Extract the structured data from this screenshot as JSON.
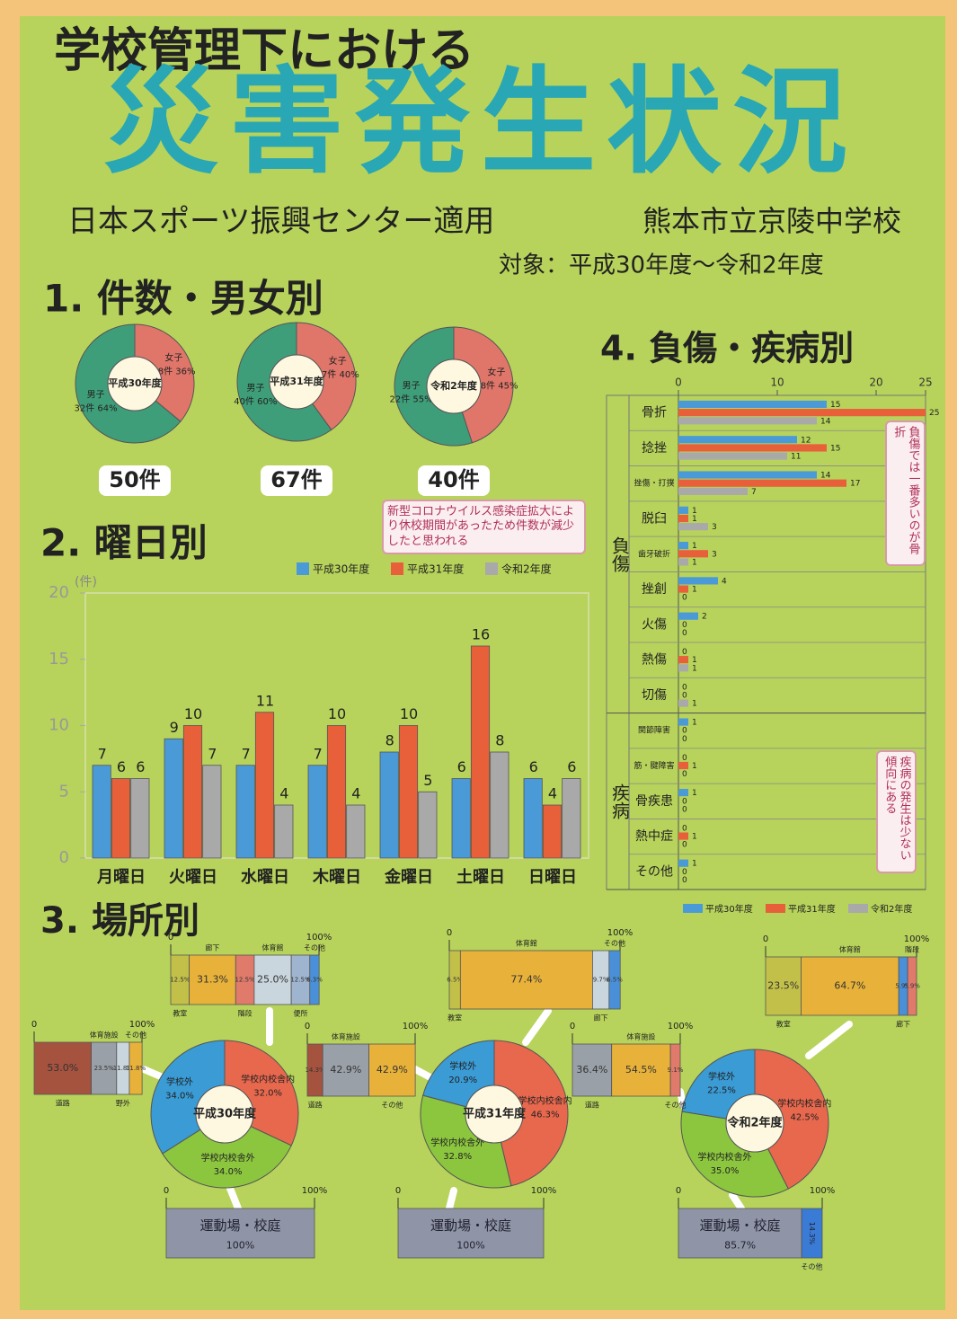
{
  "title_line1": "学校管理下における",
  "title_line2": "災害発生状況",
  "source": "日本スポーツ振興センター適用",
  "school": "熊本市立京陵中学校",
  "period": "対象：平成30年度～令和2年度",
  "sections": [
    "1. 件数・男女別",
    "2. 曜日別",
    "3. 場所別",
    "4. 負傷・疾病別"
  ],
  "notes": [
    "新型コロナウイルス感染症拡大により休校期間があったため件数が減少したと思われる",
    "負傷では一番多いのが骨折",
    "疾病の発生は少ない傾向にある"
  ],
  "chart_data": [
    {
      "type": "donut",
      "label": "平成30年度",
      "caption": "50件",
      "categories": [
        "女子",
        "男子"
      ],
      "values": [
        36,
        64
      ],
      "value_labels": [
        "18件 36%",
        "32件 64%"
      ],
      "colors": [
        "#e0766a",
        "#3f9e7a"
      ]
    },
    {
      "type": "donut",
      "label": "平成31年度",
      "caption": "67件",
      "categories": [
        "女子",
        "男子"
      ],
      "values": [
        40,
        60
      ],
      "value_labels": [
        "27件 40%",
        "40件 60%"
      ],
      "colors": [
        "#e0766a",
        "#3f9e7a"
      ]
    },
    {
      "type": "donut",
      "label": "令和2年度",
      "caption": "40件",
      "categories": [
        "女子",
        "男子"
      ],
      "values": [
        45,
        55
      ],
      "value_labels": [
        "18件 45%",
        "22件 55%"
      ],
      "colors": [
        "#e0766a",
        "#3f9e7a"
      ]
    },
    {
      "type": "bar",
      "y_unit": "(件)",
      "categories": [
        "月曜日",
        "火曜日",
        "水曜日",
        "木曜日",
        "金曜日",
        "土曜日",
        "日曜日"
      ],
      "series": [
        {
          "name": "平成30年度",
          "color": "#4a9ad8",
          "values": [
            7,
            9,
            7,
            7,
            8,
            6,
            6
          ]
        },
        {
          "name": "平成31年度",
          "color": "#e8603a",
          "values": [
            6,
            10,
            11,
            10,
            10,
            16,
            4
          ]
        },
        {
          "name": "令和2年度",
          "color": "#a9a9a9",
          "values": [
            6,
            7,
            4,
            4,
            5,
            8,
            6
          ]
        }
      ],
      "ylim": [
        0,
        20
      ],
      "yticks": [
        0,
        5,
        10,
        15,
        20
      ],
      "grid": false
    },
    {
      "type": "hbar",
      "category_groups": [
        {
          "label": "負傷",
          "categories": [
            "骨折",
            "捻挫",
            "挫傷・打撲",
            "脱臼",
            "歯牙破折",
            "挫創",
            "火傷",
            "熱傷",
            "切傷"
          ]
        },
        {
          "label": "疾病",
          "categories": [
            "関節障害",
            "筋・腱障害",
            "骨疾患",
            "熱中症",
            "その他"
          ]
        }
      ],
      "series": [
        {
          "name": "平成30年度",
          "color": "#4a9ad8",
          "values": [
            15,
            12,
            14,
            1,
            1,
            4,
            2,
            0,
            0,
            1,
            0,
            1,
            0,
            1
          ]
        },
        {
          "name": "平成31年度",
          "color": "#e8603a",
          "values": [
            25,
            15,
            17,
            1,
            3,
            1,
            0,
            1,
            0,
            0,
            1,
            0,
            1,
            0
          ]
        },
        {
          "name": "令和2年度",
          "color": "#a9a9a9",
          "values": [
            14,
            11,
            7,
            3,
            1,
            0,
            0,
            1,
            1,
            0,
            0,
            0,
            0,
            0
          ]
        }
      ],
      "xlim": [
        0,
        25
      ],
      "xticks": [
        0,
        10,
        20,
        25
      ],
      "grid": true
    },
    {
      "type": "donut",
      "label": "平成30年度",
      "categories": [
        "学校内校舎内",
        "学校内校舎外",
        "学校外"
      ],
      "values": [
        32,
        34,
        34
      ],
      "value_labels": [
        "32.0%",
        "34.0%",
        "34.0%"
      ],
      "colors": [
        "#e8684e",
        "#8cc63f",
        "#3a9bd5"
      ]
    },
    {
      "type": "donut",
      "label": "平成31年度",
      "categories": [
        "学校内校舎内",
        "学校内校舎外",
        "学校外"
      ],
      "values": [
        46.3,
        32.8,
        20.9
      ],
      "value_labels": [
        "46.3%",
        "32.8%",
        "20.9%"
      ],
      "colors": [
        "#e8684e",
        "#8cc63f",
        "#3a9bd5"
      ]
    },
    {
      "type": "donut",
      "label": "令和2年度",
      "categories": [
        "学校内校舎内",
        "学校内校舎外",
        "学校外"
      ],
      "values": [
        42.5,
        35.0,
        22.5
      ],
      "value_labels": [
        "42.5%",
        "35.0%",
        "22.5%"
      ],
      "colors": [
        "#e8684e",
        "#8cc63f",
        "#3a9bd5"
      ]
    },
    {
      "type": "stacked100",
      "categories": [
        "教室",
        "廊下",
        "階段",
        "体育館",
        "便所",
        "その他"
      ],
      "values": [
        12.5,
        31.3,
        12.5,
        25.0,
        12.5,
        6.3
      ],
      "value_labels": [
        "12.5%",
        "31.3%",
        "12.5%",
        "25.0%",
        "12.5%",
        "6.3%"
      ],
      "colors": [
        "#c3c04a",
        "#e8b23a",
        "#e07a6a",
        "#c9d6de",
        "#9fb5cf",
        "#4a90d9"
      ],
      "xticks": [
        0,
        {
          "value": 100,
          "label": "100%"
        }
      ]
    },
    {
      "type": "stacked100",
      "categories": [
        "道路",
        "体育施設",
        "野外",
        "その他"
      ],
      "values": [
        53.0,
        23.5,
        11.8,
        11.8
      ],
      "value_labels": [
        "53.0%",
        "23.5%",
        "11.8%",
        "11.8%"
      ],
      "colors": [
        "#a5523f",
        "#9aa0a8",
        "#c9d6de",
        "#e8b23a"
      ],
      "xticks": [
        0,
        {
          "value": 100,
          "label": "100%"
        }
      ]
    },
    {
      "type": "stacked100",
      "categories": [
        "運動場・校庭"
      ],
      "values": [
        100
      ],
      "value_labels": [
        "100%"
      ],
      "colors": [
        "#8f95a6"
      ],
      "xticks": [
        0,
        {
          "value": 100,
          "label": "100%"
        }
      ]
    },
    {
      "type": "stacked100",
      "categories": [
        "教室",
        "体育館",
        "廊下",
        "その他"
      ],
      "values": [
        6.5,
        77.4,
        9.7,
        6.5
      ],
      "value_labels": [
        "6.5%",
        "77.4%",
        "9.7%",
        "6.5%"
      ],
      "colors": [
        "#c3c04a",
        "#e8b23a",
        "#c9d6de",
        "#4a90d9"
      ],
      "xticks": [
        0,
        {
          "value": 100,
          "label": "100%"
        }
      ]
    },
    {
      "type": "stacked100",
      "categories": [
        "道路",
        "体育施設",
        "その他"
      ],
      "values": [
        14.3,
        42.9,
        42.9
      ],
      "value_labels": [
        "14.3%",
        "42.9%",
        "42.9%"
      ],
      "colors": [
        "#a5523f",
        "#9aa0a8",
        "#e8b23a"
      ],
      "xticks": [
        0,
        {
          "value": 100,
          "label": "100%"
        }
      ]
    },
    {
      "type": "stacked100",
      "categories": [
        "運動場・校庭"
      ],
      "values": [
        100
      ],
      "value_labels": [
        "100%"
      ],
      "colors": [
        "#8f95a6"
      ],
      "xticks": [
        0,
        {
          "value": 100,
          "label": "100%"
        }
      ]
    },
    {
      "type": "stacked100",
      "categories": [
        "教室",
        "体育館",
        "廊下",
        "階段"
      ],
      "values": [
        23.5,
        64.7,
        5.9,
        5.9
      ],
      "value_labels": [
        "23.5%",
        "64.7%",
        "5.9%",
        "5.9%"
      ],
      "colors": [
        "#c3c04a",
        "#e8b23a",
        "#4a90d9",
        "#e07a6a"
      ],
      "xticks": [
        0,
        {
          "value": 100,
          "label": "100%"
        }
      ]
    },
    {
      "type": "stacked100",
      "categories": [
        "道路",
        "体育施設",
        "その他"
      ],
      "values": [
        36.4,
        54.5,
        9.1
      ],
      "value_labels": [
        "36.4%",
        "54.5%",
        "9.1%"
      ],
      "colors": [
        "#9aa0a8",
        "#e8b23a",
        "#e07a6a"
      ],
      "xticks": [
        0,
        {
          "value": 100,
          "label": "100%"
        }
      ]
    },
    {
      "type": "stacked100",
      "categories": [
        "運動場・校庭",
        "その他"
      ],
      "values": [
        85.7,
        14.3
      ],
      "value_labels": [
        "85.7%",
        "14.3%"
      ],
      "colors": [
        "#8f95a6",
        "#3a7bd5"
      ],
      "xticks": [
        0,
        {
          "value": 100,
          "label": "100%"
        }
      ]
    }
  ]
}
